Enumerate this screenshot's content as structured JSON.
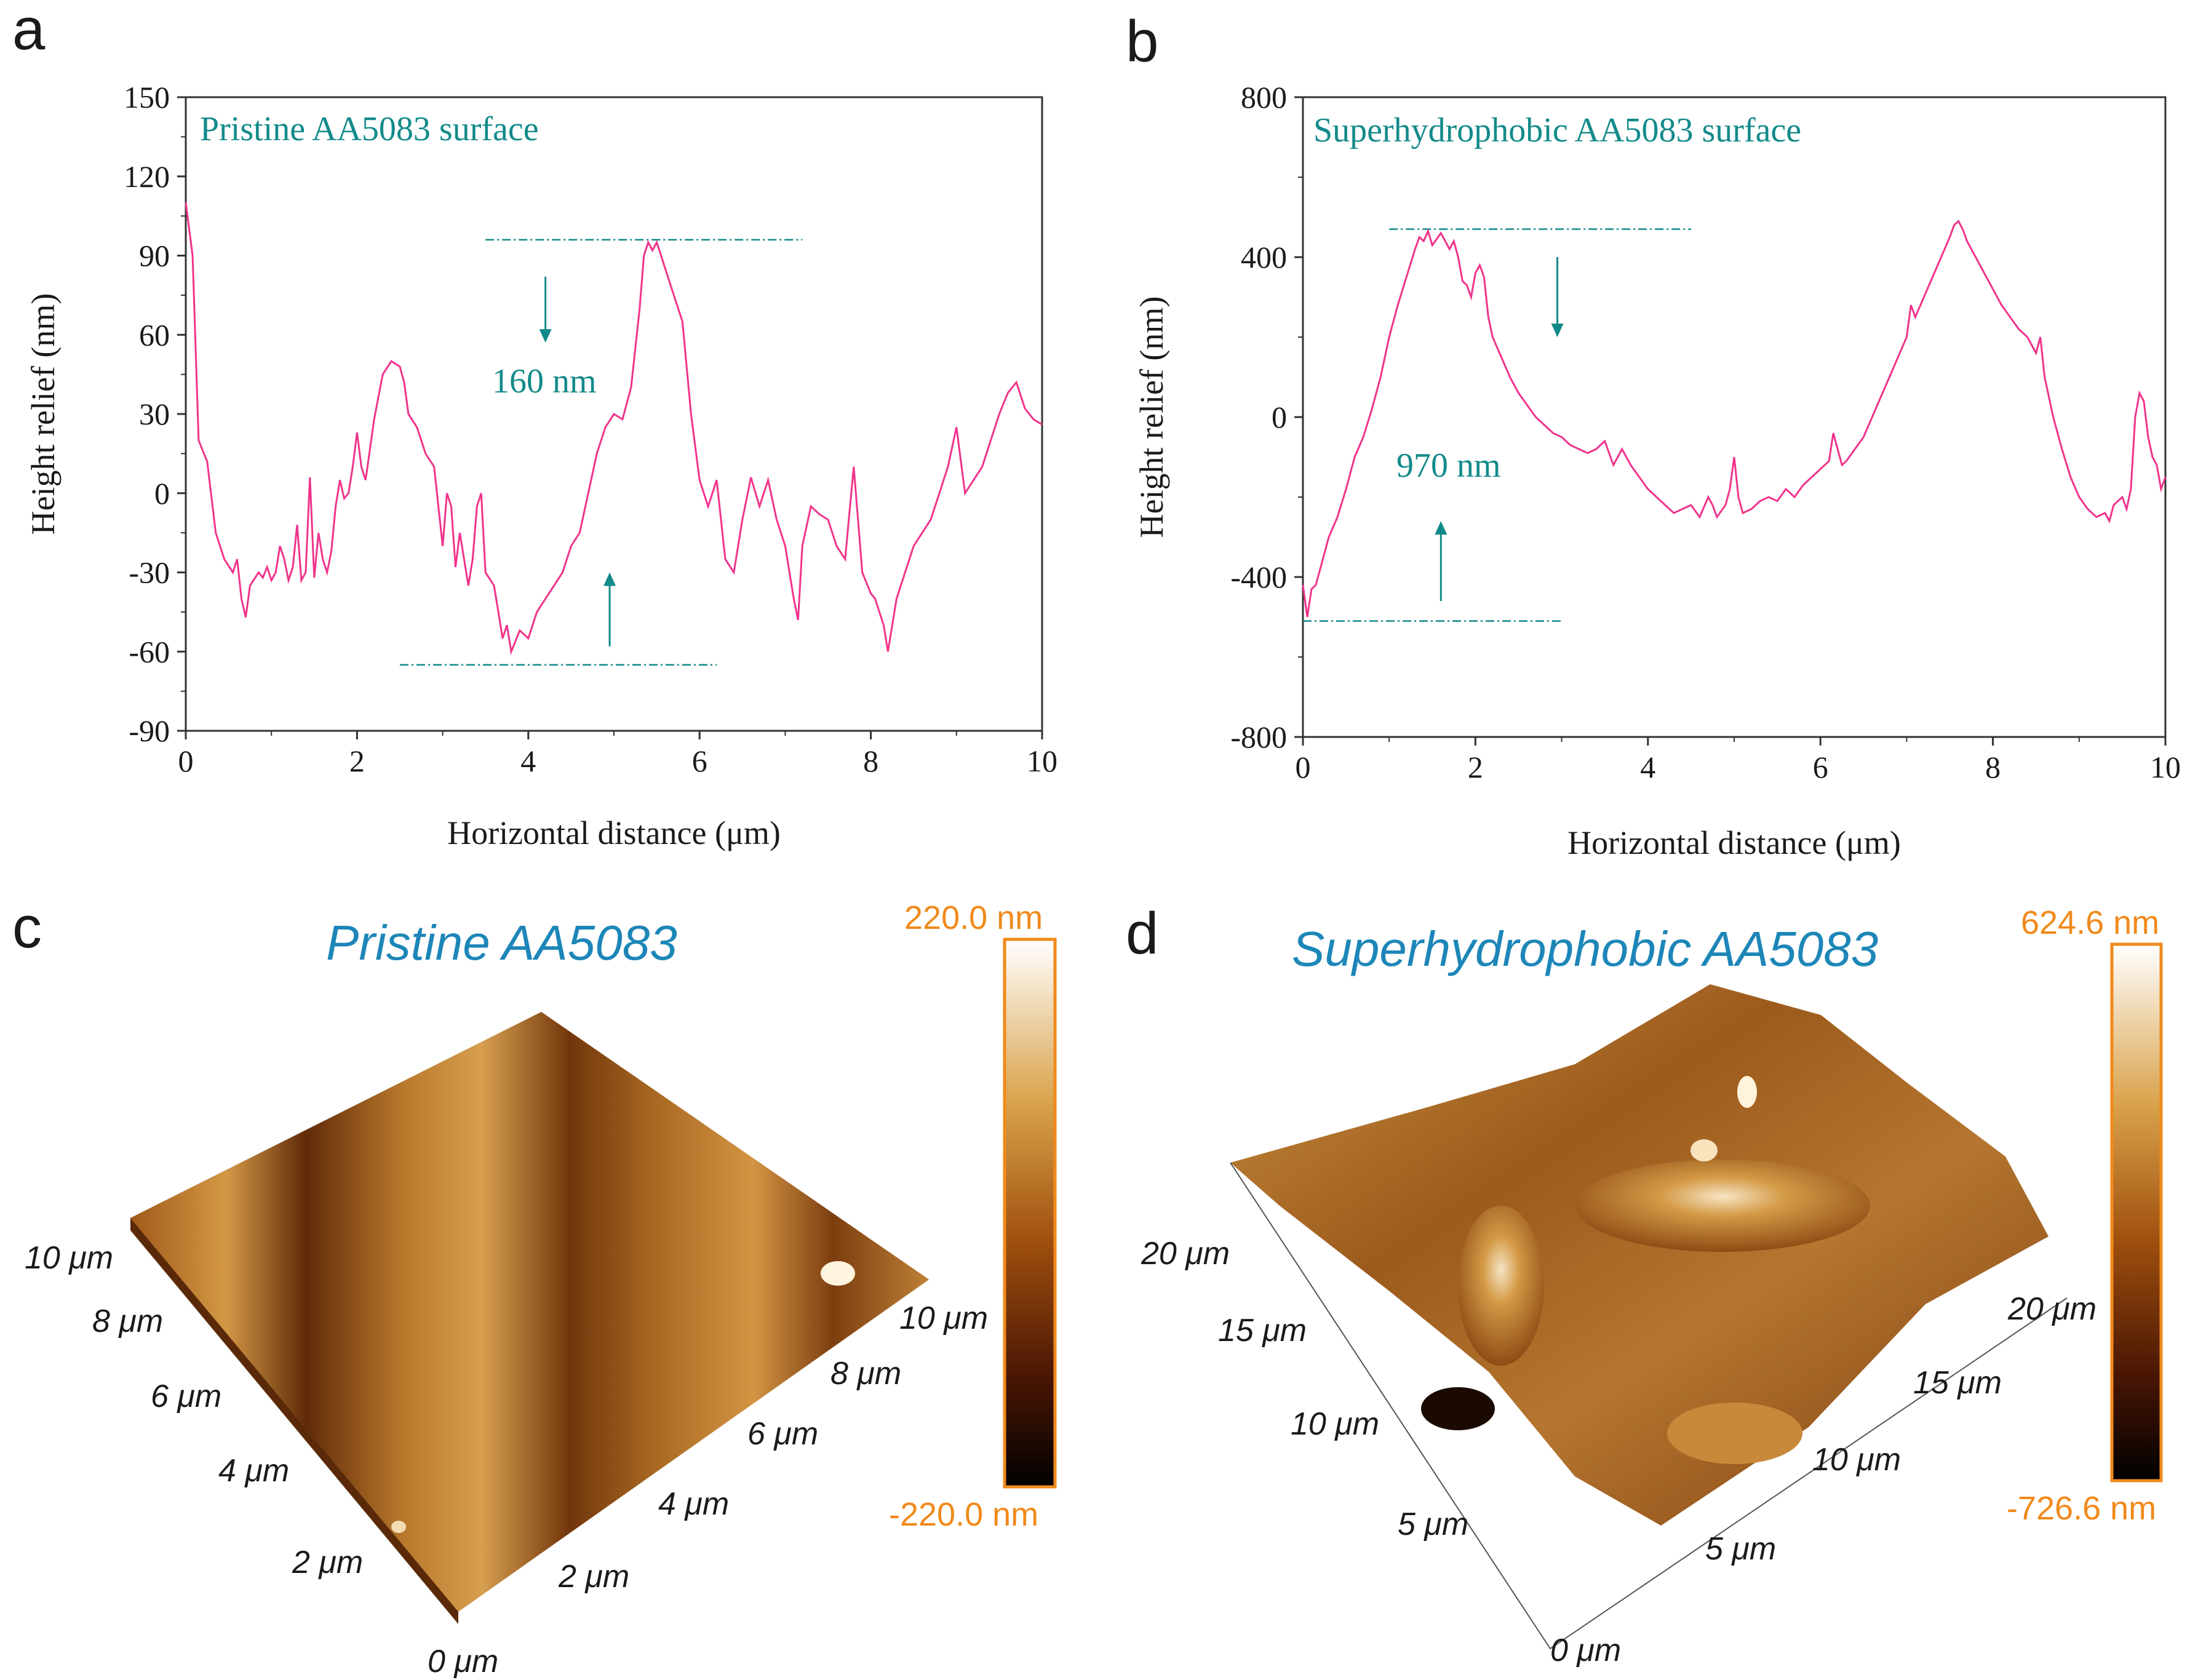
{
  "panels": {
    "a": "a",
    "b": "b",
    "c": "c",
    "d": "d"
  },
  "chart_data": [
    {
      "id": "a",
      "type": "line",
      "title": "Pristine AA5083 surface",
      "xlabel": "Horizontal distance (μm)",
      "ylabel": "Height relief (nm)",
      "xlim": [
        0,
        10
      ],
      "ylim": [
        -90,
        150
      ],
      "xticks": [
        "0",
        "2",
        "4",
        "6",
        "8",
        "10"
      ],
      "yticks": [
        "150",
        "120",
        "90",
        "60",
        "30",
        "0",
        "-30",
        "-60",
        "-90"
      ],
      "line_color": "#f0338c",
      "annotation_color": "#138a8a",
      "annotation": "160 nm",
      "ref_lines": [
        {
          "y": 96,
          "x1": 3.5,
          "x2": 7.2
        },
        {
          "y": -65,
          "x1": 2.5,
          "x2": 6.2
        }
      ],
      "arrows": [
        {
          "x": 4.2,
          "y_from": 82,
          "y_to": 57
        },
        {
          "x": 4.95,
          "y_from": -58,
          "y_to": -30
        }
      ],
      "series": [
        {
          "name": "height",
          "x": [
            0.0,
            0.08,
            0.15,
            0.25,
            0.35,
            0.45,
            0.55,
            0.6,
            0.65,
            0.7,
            0.75,
            0.85,
            0.9,
            0.95,
            1.0,
            1.05,
            1.1,
            1.15,
            1.2,
            1.25,
            1.3,
            1.35,
            1.4,
            1.45,
            1.5,
            1.55,
            1.6,
            1.65,
            1.7,
            1.75,
            1.8,
            1.85,
            1.9,
            1.95,
            2.0,
            2.05,
            2.1,
            2.2,
            2.3,
            2.4,
            2.5,
            2.55,
            2.6,
            2.7,
            2.8,
            2.9,
            3.0,
            3.05,
            3.1,
            3.15,
            3.2,
            3.25,
            3.3,
            3.35,
            3.4,
            3.45,
            3.5,
            3.6,
            3.65,
            3.7,
            3.75,
            3.8,
            3.9,
            4.0,
            4.1,
            4.2,
            4.3,
            4.4,
            4.5,
            4.6,
            4.7,
            4.8,
            4.9,
            5.0,
            5.1,
            5.2,
            5.3,
            5.35,
            5.4,
            5.45,
            5.5,
            5.55,
            5.6,
            5.7,
            5.8,
            5.9,
            6.0,
            6.1,
            6.2,
            6.3,
            6.4,
            6.5,
            6.6,
            6.7,
            6.8,
            6.9,
            7.0,
            7.1,
            7.15,
            7.2,
            7.3,
            7.4,
            7.5,
            7.6,
            7.7,
            7.8,
            7.9,
            8.0,
            8.05,
            8.1,
            8.15,
            8.2,
            8.3,
            8.4,
            8.5,
            8.6,
            8.7,
            8.8,
            8.9,
            9.0,
            9.1,
            9.2,
            9.3,
            9.4,
            9.5,
            9.6,
            9.7,
            9.8,
            9.9,
            10.0
          ],
          "y": [
            110,
            90,
            20,
            12,
            -15,
            -25,
            -30,
            -25,
            -40,
            -47,
            -35,
            -30,
            -32,
            -28,
            -33,
            -30,
            -20,
            -25,
            -33,
            -28,
            -12,
            -33,
            -30,
            6,
            -32,
            -15,
            -25,
            -30,
            -22,
            -5,
            5,
            -2,
            0,
            10,
            23,
            10,
            5,
            28,
            45,
            50,
            48,
            42,
            30,
            25,
            15,
            10,
            -20,
            0,
            -5,
            -28,
            -15,
            -25,
            -35,
            -25,
            -5,
            0,
            -30,
            -35,
            -45,
            -55,
            -50,
            -60,
            -52,
            -55,
            -45,
            -40,
            -35,
            -30,
            -20,
            -15,
            0,
            15,
            25,
            30,
            28,
            40,
            70,
            90,
            95,
            92,
            95,
            90,
            85,
            75,
            65,
            30,
            5,
            -5,
            5,
            -25,
            -30,
            -10,
            6,
            -5,
            5,
            -10,
            -20,
            -40,
            -48,
            -20,
            -5,
            -8,
            -10,
            -20,
            -25,
            10,
            -30,
            -38,
            -40,
            -45,
            -50,
            -60,
            -40,
            -30,
            -20,
            -15,
            -10,
            0,
            10,
            25,
            0,
            5,
            10,
            20,
            30,
            38,
            42,
            32,
            28,
            26
          ]
        }
      ]
    },
    {
      "id": "b",
      "type": "line",
      "title": "Superhydrophobic AA5083 surface",
      "xlabel": "Horizontal distance (μm)",
      "ylabel": "Height relief (nm)",
      "xlim": [
        0,
        10
      ],
      "ylim": [
        -800,
        800
      ],
      "xticks": [
        "0",
        "2",
        "4",
        "6",
        "8",
        "10"
      ],
      "yticks": [
        "800",
        "400",
        "0",
        "-400",
        "-800"
      ],
      "line_color": "#f0338c",
      "annotation_color": "#138a8a",
      "annotation": "970 nm",
      "ref_lines": [
        {
          "y": 470,
          "x1": 1.0,
          "x2": 4.5
        },
        {
          "y": -510,
          "x1": 0.0,
          "x2": 3.0
        }
      ],
      "arrows": [
        {
          "x": 2.95,
          "y_from": 400,
          "y_to": 200
        },
        {
          "x": 1.6,
          "y_from": -460,
          "y_to": -260
        }
      ],
      "series": [
        {
          "name": "height",
          "x": [
            0.0,
            0.05,
            0.1,
            0.15,
            0.2,
            0.3,
            0.4,
            0.5,
            0.6,
            0.7,
            0.8,
            0.9,
            1.0,
            1.1,
            1.2,
            1.3,
            1.35,
            1.4,
            1.45,
            1.5,
            1.6,
            1.7,
            1.75,
            1.8,
            1.85,
            1.9,
            1.95,
            2.0,
            2.05,
            2.1,
            2.15,
            2.2,
            2.3,
            2.4,
            2.5,
            2.6,
            2.7,
            2.8,
            2.9,
            3.0,
            3.1,
            3.2,
            3.3,
            3.4,
            3.5,
            3.6,
            3.65,
            3.7,
            3.8,
            3.9,
            4.0,
            4.1,
            4.2,
            4.3,
            4.4,
            4.5,
            4.6,
            4.7,
            4.75,
            4.8,
            4.9,
            4.95,
            5.0,
            5.05,
            5.1,
            5.2,
            5.3,
            5.4,
            5.5,
            5.6,
            5.7,
            5.8,
            5.9,
            6.0,
            6.1,
            6.15,
            6.2,
            6.25,
            6.3,
            6.4,
            6.5,
            6.6,
            6.7,
            6.8,
            6.9,
            7.0,
            7.05,
            7.1,
            7.2,
            7.3,
            7.4,
            7.5,
            7.55,
            7.6,
            7.65,
            7.7,
            7.8,
            7.9,
            8.0,
            8.1,
            8.2,
            8.3,
            8.4,
            8.5,
            8.55,
            8.6,
            8.7,
            8.8,
            8.9,
            9.0,
            9.1,
            9.2,
            9.3,
            9.35,
            9.4,
            9.5,
            9.55,
            9.6,
            9.65,
            9.7,
            9.75,
            9.8,
            9.85,
            9.9,
            9.95,
            10.0
          ],
          "y": [
            -420,
            -500,
            -430,
            -420,
            -380,
            -300,
            -250,
            -180,
            -100,
            -50,
            20,
            100,
            200,
            280,
            350,
            420,
            450,
            440,
            465,
            430,
            460,
            420,
            440,
            400,
            340,
            330,
            300,
            360,
            380,
            350,
            250,
            200,
            150,
            100,
            60,
            30,
            0,
            -20,
            -40,
            -50,
            -70,
            -80,
            -90,
            -80,
            -60,
            -120,
            -100,
            -80,
            -120,
            -150,
            -180,
            -200,
            -220,
            -240,
            -230,
            -220,
            -250,
            -200,
            -220,
            -250,
            -220,
            -180,
            -100,
            -200,
            -240,
            -230,
            -210,
            -200,
            -210,
            -180,
            -200,
            -170,
            -150,
            -130,
            -110,
            -40,
            -80,
            -120,
            -110,
            -80,
            -50,
            0,
            50,
            100,
            150,
            200,
            280,
            250,
            300,
            350,
            400,
            450,
            480,
            490,
            470,
            440,
            400,
            360,
            320,
            280,
            250,
            220,
            200,
            160,
            200,
            100,
            0,
            -80,
            -150,
            -200,
            -230,
            -250,
            -240,
            -260,
            -220,
            -200,
            -230,
            -180,
            0,
            60,
            40,
            -50,
            -100,
            -120,
            -180,
            -150
          ]
        }
      ]
    }
  ],
  "surfaces": [
    {
      "id": "c",
      "title": "Pristine AA5083",
      "scale_max": "220.0 nm",
      "scale_min": "-220.0 nm",
      "left_axis_ticks": [
        "10 μm",
        "8 μm",
        "6 μm",
        "4 μm",
        "2 μm"
      ],
      "right_axis_ticks": [
        "10 μm",
        "8 μm",
        "6 μm",
        "4 μm",
        "2 μm"
      ],
      "origin_tick": "0 μm"
    },
    {
      "id": "d",
      "title": "Superhydrophobic AA5083",
      "scale_max": "624.6 nm",
      "scale_min": "-726.6 nm",
      "left_axis_ticks": [
        "20 μm",
        "15 μm",
        "10 μm",
        "5 μm"
      ],
      "right_axis_ticks": [
        "20 μm",
        "15 μm",
        "10 μm",
        "5 μm"
      ],
      "origin_tick": "0 μm"
    }
  ]
}
